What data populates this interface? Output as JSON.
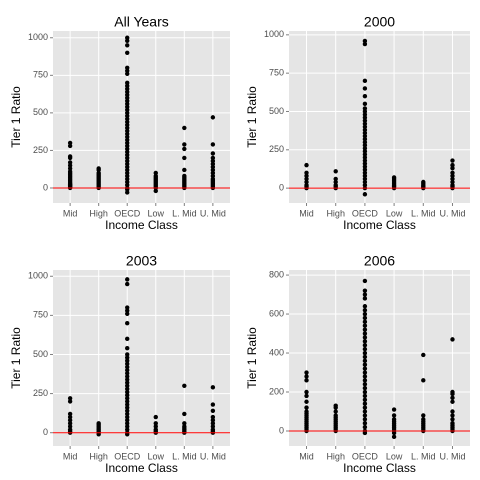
{
  "chart_data": [
    {
      "type": "scatter",
      "title": "All Years",
      "x_label": "Income Class",
      "y_label": "Tier 1 Ratio",
      "categories": [
        "Mid",
        "High",
        "OECD",
        "Low",
        "L. Mid",
        "U. Mid"
      ],
      "values": [
        [
          0,
          5,
          10,
          15,
          20,
          25,
          30,
          40,
          50,
          60,
          70,
          80,
          90,
          100,
          110,
          130,
          150,
          170,
          200,
          210,
          280,
          300
        ],
        [
          0,
          10,
          20,
          30,
          40,
          50,
          60,
          70,
          80,
          90,
          100,
          120,
          130
        ],
        [
          -30,
          -10,
          0,
          20,
          40,
          60,
          80,
          100,
          120,
          140,
          160,
          180,
          200,
          220,
          240,
          260,
          280,
          300,
          320,
          340,
          360,
          380,
          400,
          420,
          440,
          460,
          480,
          500,
          520,
          540,
          560,
          580,
          600,
          620,
          640,
          660,
          680,
          700,
          760,
          780,
          800,
          900,
          950,
          980,
          1000
        ],
        [
          -20,
          0,
          10,
          20,
          30,
          40,
          50,
          60,
          70,
          80,
          100
        ],
        [
          0,
          10,
          20,
          30,
          40,
          50,
          60,
          70,
          80,
          120,
          200,
          260,
          290,
          400
        ],
        [
          0,
          10,
          20,
          30,
          40,
          50,
          60,
          80,
          100,
          120,
          140,
          160,
          180,
          200,
          230,
          290,
          470
        ]
      ],
      "ylim": [
        -100,
        1045
      ],
      "yticks": [
        0,
        250,
        500,
        750,
        1000
      ],
      "grid": true,
      "point_color": "#000000",
      "reference_line": {
        "value": 0,
        "color": "#ff0000"
      }
    },
    {
      "type": "scatter",
      "title": "2000",
      "x_label": "Income Class",
      "y_label": "Tier 1 Ratio",
      "categories": [
        "Mid",
        "High",
        "OECD",
        "Low",
        "L. Mid",
        "U. Mid"
      ],
      "values": [
        [
          0,
          10,
          20,
          40,
          60,
          80,
          100,
          150
        ],
        [
          0,
          10,
          20,
          40,
          60,
          110
        ],
        [
          -40,
          0,
          20,
          40,
          60,
          80,
          100,
          120,
          140,
          160,
          180,
          200,
          220,
          240,
          260,
          280,
          300,
          320,
          340,
          360,
          380,
          400,
          420,
          440,
          460,
          480,
          500,
          520,
          550,
          600,
          650,
          700,
          940,
          960
        ],
        [
          0,
          10,
          20,
          30,
          40,
          50,
          60,
          70
        ],
        [
          0,
          5,
          10,
          20,
          30,
          40
        ],
        [
          0,
          10,
          20,
          40,
          60,
          80,
          100,
          130,
          150,
          180
        ]
      ],
      "ylim": [
        -97,
        1025
      ],
      "yticks": [
        0,
        250,
        500,
        750,
        1000
      ],
      "grid": true,
      "point_color": "#000000",
      "reference_line": {
        "value": 0,
        "color": "#ff0000"
      }
    },
    {
      "type": "scatter",
      "title": "2003",
      "x_label": "Income Class",
      "y_label": "Tier 1 Ratio",
      "categories": [
        "Mid",
        "High",
        "OECD",
        "Low",
        "L. Mid",
        "U. Mid"
      ],
      "values": [
        [
          0,
          10,
          20,
          40,
          60,
          80,
          100,
          120,
          200,
          220
        ],
        [
          -10,
          0,
          10,
          20,
          30,
          40,
          50,
          60
        ],
        [
          -10,
          0,
          20,
          40,
          60,
          80,
          100,
          120,
          140,
          160,
          180,
          200,
          220,
          240,
          260,
          280,
          300,
          320,
          340,
          360,
          380,
          400,
          420,
          440,
          460,
          480,
          500,
          540,
          600,
          700,
          760,
          780,
          800,
          950,
          980
        ],
        [
          0,
          10,
          20,
          40,
          60,
          100
        ],
        [
          0,
          10,
          20,
          30,
          40,
          60,
          120,
          300
        ],
        [
          0,
          10,
          20,
          40,
          60,
          80,
          100,
          140,
          180,
          290
        ]
      ],
      "ylim": [
        -85,
        1040
      ],
      "yticks": [
        0,
        250,
        500,
        750,
        1000
      ],
      "grid": true,
      "point_color": "#000000",
      "reference_line": {
        "value": 0,
        "color": "#ff0000"
      }
    },
    {
      "type": "scatter",
      "title": "2006",
      "x_label": "Income Class",
      "y_label": "Tier 1 Ratio",
      "categories": [
        "Mid",
        "High",
        "OECD",
        "Low",
        "L. Mid",
        "U. Mid"
      ],
      "values": [
        [
          0,
          10,
          20,
          30,
          40,
          50,
          60,
          70,
          80,
          90,
          100,
          120,
          150,
          180,
          200,
          260,
          280,
          300
        ],
        [
          0,
          10,
          20,
          30,
          40,
          50,
          60,
          70,
          80,
          100,
          120,
          130
        ],
        [
          -10,
          0,
          20,
          40,
          60,
          80,
          100,
          120,
          140,
          160,
          180,
          200,
          220,
          240,
          260,
          280,
          300,
          320,
          340,
          360,
          380,
          400,
          420,
          440,
          460,
          480,
          500,
          520,
          540,
          560,
          580,
          600,
          620,
          640,
          680,
          700,
          720,
          770
        ],
        [
          -30,
          -10,
          0,
          10,
          20,
          30,
          40,
          50,
          60,
          80,
          110
        ],
        [
          0,
          10,
          20,
          30,
          40,
          50,
          60,
          80,
          260,
          390
        ],
        [
          0,
          10,
          20,
          30,
          40,
          60,
          80,
          100,
          150,
          170,
          190,
          200,
          470
        ]
      ],
      "ylim": [
        -77,
        826
      ],
      "yticks": [
        0,
        200,
        400,
        600,
        800
      ],
      "grid": true,
      "point_color": "#000000",
      "reference_line": {
        "value": 0,
        "color": "#ff0000"
      }
    }
  ]
}
